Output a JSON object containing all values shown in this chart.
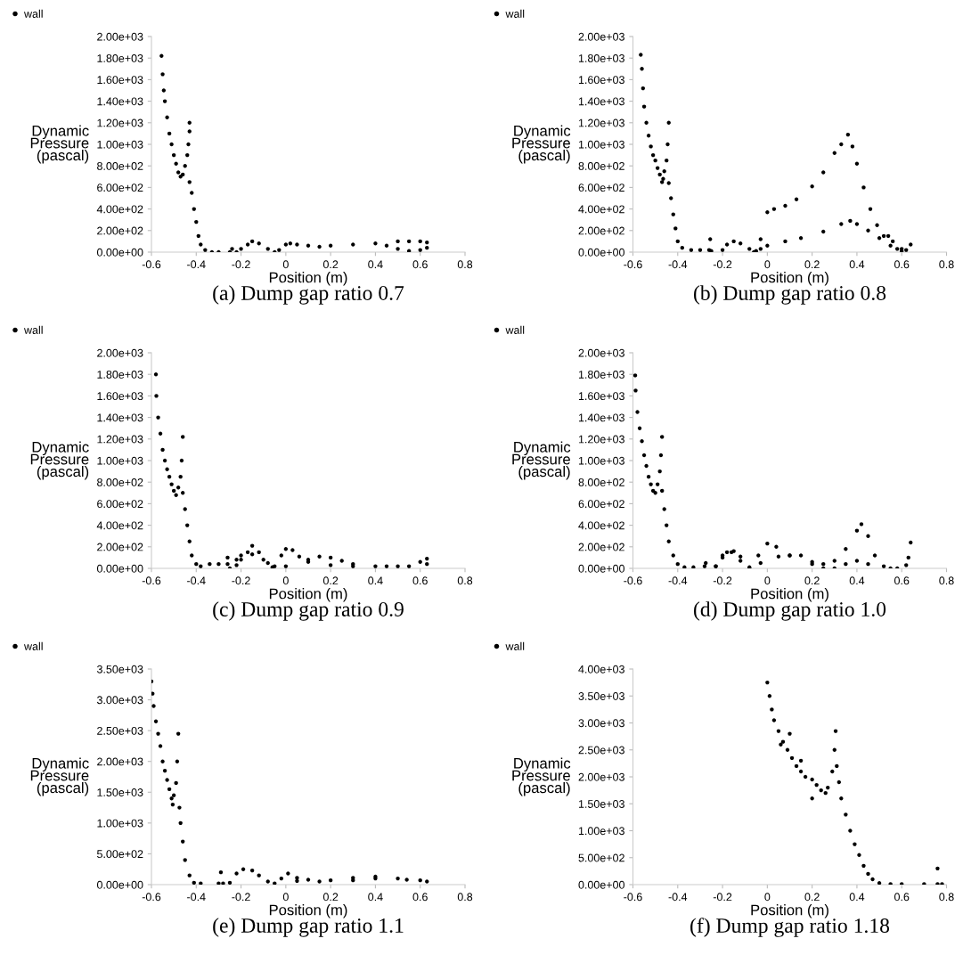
{
  "chart_data": [
    {
      "type": "scatter",
      "title": "(a) Dump gap ratio 0.7",
      "xlabel": "Position (m)",
      "ylabel": "Dynamic\nPressure\n(pascal)",
      "legend": "top left",
      "marker": "circle",
      "grid": false,
      "xlim": [
        -0.6,
        0.8
      ],
      "xticks": [
        -0.6,
        -0.4,
        -0.2,
        0,
        0.2,
        0.4,
        0.6,
        0.8
      ],
      "ylim": [
        0,
        2000
      ],
      "yticks": [
        {
          "value": 0,
          "label": "0.00e+00"
        },
        {
          "value": 200,
          "label": "2.00e+02"
        },
        {
          "value": 400,
          "label": "4.00e+02"
        },
        {
          "value": 600,
          "label": "6.00e+02"
        },
        {
          "value": 800,
          "label": "8.00e+02"
        },
        {
          "value": 1000,
          "label": "1.00e+03"
        },
        {
          "value": 1200,
          "label": "1.20e+03"
        },
        {
          "value": 1400,
          "label": "1.40e+03"
        },
        {
          "value": 1600,
          "label": "1.60e+03"
        },
        {
          "value": 1800,
          "label": "1.80e+03"
        },
        {
          "value": 2000,
          "label": "2.00e+03"
        }
      ],
      "series": [
        {
          "name": "wall",
          "color": "#000000",
          "x": [
            -0.555,
            -0.55,
            -0.545,
            -0.54,
            -0.53,
            -0.52,
            -0.51,
            -0.5,
            -0.49,
            -0.48,
            -0.47,
            -0.46,
            -0.45,
            -0.44,
            -0.435,
            -0.43,
            -0.43,
            -0.43,
            -0.42,
            -0.41,
            -0.4,
            -0.39,
            -0.38,
            -0.36,
            -0.33,
            -0.3,
            -0.25,
            -0.24,
            -0.22,
            -0.2,
            -0.17,
            -0.15,
            -0.12,
            -0.08,
            -0.05,
            -0.03,
            0,
            0.02,
            0.05,
            0.1,
            0.15,
            0.2,
            0.3,
            0.4,
            0.5,
            0.55,
            0.6,
            0.63,
            0.63,
            0.6,
            0.55,
            0.5,
            0.45
          ],
          "values": [
            1820,
            1650,
            1500,
            1400,
            1250,
            1100,
            1000,
            900,
            820,
            740,
            700,
            720,
            800,
            900,
            1000,
            1200,
            1120,
            650,
            550,
            400,
            280,
            150,
            70,
            20,
            0,
            0,
            0,
            30,
            0,
            30,
            70,
            100,
            80,
            30,
            0,
            20,
            70,
            80,
            70,
            60,
            50,
            60,
            70,
            80,
            100,
            100,
            100,
            90,
            40,
            20,
            10,
            30,
            60
          ]
        }
      ]
    },
    {
      "type": "scatter",
      "title": "(b) Dump gap ratio 0.8",
      "xlabel": "Position (m)",
      "ylabel": "Dynamic\nPressure\n(pascal)",
      "legend": "top left",
      "marker": "circle",
      "grid": false,
      "xlim": [
        -0.6,
        0.8
      ],
      "xticks": [
        -0.6,
        -0.4,
        -0.2,
        0,
        0.2,
        0.4,
        0.6,
        0.8
      ],
      "ylim": [
        0,
        2000
      ],
      "yticks": [
        {
          "value": 0,
          "label": "0.00e+00"
        },
        {
          "value": 200,
          "label": "2.00e+02"
        },
        {
          "value": 400,
          "label": "4.00e+02"
        },
        {
          "value": 600,
          "label": "6.00e+02"
        },
        {
          "value": 800,
          "label": "8.00e+02"
        },
        {
          "value": 1000,
          "label": "1.00e+03"
        },
        {
          "value": 1200,
          "label": "1.20e+03"
        },
        {
          "value": 1400,
          "label": "1.40e+03"
        },
        {
          "value": 1600,
          "label": "1.60e+03"
        },
        {
          "value": 1800,
          "label": "1.80e+03"
        },
        {
          "value": 2000,
          "label": "2.00e+03"
        }
      ],
      "series": [
        {
          "name": "wall",
          "color": "#000000",
          "x": [
            -0.565,
            -0.56,
            -0.555,
            -0.55,
            -0.54,
            -0.53,
            -0.52,
            -0.51,
            -0.5,
            -0.49,
            -0.48,
            -0.47,
            -0.465,
            -0.46,
            -0.45,
            -0.445,
            -0.44,
            -0.44,
            -0.43,
            -0.42,
            -0.41,
            -0.4,
            -0.38,
            -0.34,
            -0.3,
            -0.26,
            -0.255,
            -0.25,
            -0.2,
            -0.18,
            -0.15,
            -0.12,
            -0.08,
            -0.06,
            -0.03,
            0,
            0.03,
            0.08,
            0.13,
            0.2,
            0.25,
            0.3,
            0.33,
            0.36,
            0.38,
            0.4,
            0.43,
            0.46,
            0.49,
            0.52,
            0.54,
            0.56,
            0.58,
            0.6,
            0.62,
            0.64,
            0.6,
            0.55,
            0.5,
            0.45,
            0.4,
            0.37,
            0.33,
            0.25,
            0.15,
            0.08,
            0,
            -0.03,
            -0.05
          ],
          "values": [
            1830,
            1700,
            1520,
            1350,
            1200,
            1080,
            980,
            900,
            850,
            780,
            720,
            650,
            680,
            750,
            850,
            1000,
            1200,
            640,
            500,
            350,
            220,
            100,
            40,
            20,
            20,
            20,
            120,
            10,
            20,
            70,
            100,
            80,
            30,
            0,
            120,
            370,
            400,
            430,
            490,
            610,
            740,
            920,
            1000,
            1090,
            980,
            820,
            600,
            400,
            250,
            150,
            150,
            100,
            30,
            10,
            20,
            70,
            30,
            60,
            130,
            200,
            260,
            290,
            260,
            190,
            130,
            100,
            60,
            30,
            10
          ]
        }
      ]
    },
    {
      "type": "scatter",
      "title": "(c) Dump gap ratio 0.9",
      "xlabel": "Position (m)",
      "ylabel": "Dynamic\nPressure\n(pascal)",
      "legend": "top left",
      "marker": "circle",
      "grid": false,
      "xlim": [
        -0.6,
        0.8
      ],
      "xticks": [
        -0.6,
        -0.4,
        -0.2,
        0,
        0.2,
        0.4,
        0.6,
        0.8
      ],
      "ylim": [
        0,
        2000
      ],
      "yticks": [
        {
          "value": 0,
          "label": "0.00e+00"
        },
        {
          "value": 200,
          "label": "2.00e+02"
        },
        {
          "value": 400,
          "label": "4.00e+02"
        },
        {
          "value": 600,
          "label": "6.00e+02"
        },
        {
          "value": 800,
          "label": "8.00e+02"
        },
        {
          "value": 1000,
          "label": "1.00e+03"
        },
        {
          "value": 1200,
          "label": "1.20e+03"
        },
        {
          "value": 1400,
          "label": "1.40e+03"
        },
        {
          "value": 1600,
          "label": "1.60e+03"
        },
        {
          "value": 1800,
          "label": "1.80e+03"
        },
        {
          "value": 2000,
          "label": "2.00e+03"
        }
      ],
      "series": [
        {
          "name": "wall",
          "color": "#000000",
          "x": [
            -0.58,
            -0.578,
            -0.57,
            -0.56,
            -0.55,
            -0.54,
            -0.53,
            -0.52,
            -0.51,
            -0.5,
            -0.49,
            -0.48,
            -0.47,
            -0.465,
            -0.46,
            -0.46,
            -0.45,
            -0.44,
            -0.43,
            -0.42,
            -0.4,
            -0.38,
            -0.34,
            -0.3,
            -0.26,
            -0.26,
            -0.25,
            -0.22,
            -0.2,
            -0.17,
            -0.15,
            -0.12,
            -0.08,
            -0.05,
            -0.02,
            0,
            0.03,
            0.06,
            0.1,
            0.15,
            0.2,
            0.25,
            0.3,
            0.4,
            0.5,
            0.6,
            0.63,
            0.63,
            0.55,
            0.45,
            0.3,
            0.2,
            0.1,
            0,
            -0.06,
            -0.1,
            -0.15,
            -0.2,
            -0.22
          ],
          "values": [
            1800,
            1600,
            1400,
            1250,
            1100,
            1000,
            920,
            850,
            780,
            720,
            680,
            750,
            850,
            1000,
            1220,
            700,
            550,
            400,
            250,
            120,
            40,
            20,
            40,
            40,
            40,
            100,
            0,
            80,
            120,
            150,
            210,
            150,
            50,
            20,
            120,
            180,
            170,
            110,
            80,
            110,
            100,
            70,
            40,
            20,
            20,
            60,
            90,
            40,
            20,
            20,
            20,
            30,
            60,
            20,
            10,
            80,
            130,
            80,
            30
          ]
        }
      ]
    },
    {
      "type": "scatter",
      "title": "(d) Dump gap ratio 1.0",
      "xlabel": "Position (m)",
      "ylabel": "Dynamic\nPressure\n(pascal)",
      "legend": "top left",
      "marker": "circle",
      "grid": false,
      "xlim": [
        -0.6,
        0.8
      ],
      "xticks": [
        -0.6,
        -0.4,
        -0.2,
        0,
        0.2,
        0.4,
        0.6,
        0.8
      ],
      "ylim": [
        0,
        2000
      ],
      "yticks": [
        {
          "value": 0,
          "label": "0.00e+00"
        },
        {
          "value": 200,
          "label": "2.00e+02"
        },
        {
          "value": 400,
          "label": "4.00e+02"
        },
        {
          "value": 600,
          "label": "6.00e+02"
        },
        {
          "value": 800,
          "label": "8.00e+02"
        },
        {
          "value": 1000,
          "label": "1.00e+03"
        },
        {
          "value": 1200,
          "label": "1.20e+03"
        },
        {
          "value": 1400,
          "label": "1.40e+03"
        },
        {
          "value": 1600,
          "label": "1.60e+03"
        },
        {
          "value": 1800,
          "label": "1.80e+03"
        },
        {
          "value": 2000,
          "label": "2.00e+03"
        }
      ],
      "series": [
        {
          "name": "wall",
          "color": "#000000",
          "x": [
            -0.59,
            -0.588,
            -0.58,
            -0.57,
            -0.56,
            -0.55,
            -0.54,
            -0.53,
            -0.52,
            -0.51,
            -0.5,
            -0.49,
            -0.48,
            -0.475,
            -0.47,
            -0.47,
            -0.46,
            -0.45,
            -0.44,
            -0.42,
            -0.4,
            -0.37,
            -0.33,
            -0.28,
            -0.275,
            -0.23,
            -0.2,
            -0.18,
            -0.15,
            -0.12,
            -0.08,
            -0.04,
            0,
            0.04,
            0.1,
            0.15,
            0.2,
            0.25,
            0.3,
            0.35,
            0.4,
            0.42,
            0.45,
            0.48,
            0.52,
            0.58,
            0.62,
            0.64,
            0.63,
            0.55,
            0.45,
            0.4,
            0.35,
            0.3,
            0.25,
            0.2,
            0.1,
            0.05,
            -0.03,
            -0.08,
            -0.12,
            -0.16,
            -0.2,
            -0.23
          ],
          "values": [
            1790,
            1650,
            1450,
            1300,
            1180,
            1050,
            950,
            850,
            780,
            720,
            700,
            780,
            900,
            1050,
            1220,
            720,
            550,
            400,
            250,
            120,
            40,
            10,
            10,
            20,
            50,
            20,
            120,
            150,
            160,
            110,
            10,
            120,
            230,
            200,
            120,
            120,
            60,
            40,
            70,
            180,
            350,
            410,
            300,
            120,
            20,
            0,
            30,
            240,
            100,
            0,
            40,
            70,
            40,
            0,
            0,
            40,
            120,
            110,
            50,
            0,
            70,
            150,
            100,
            20
          ]
        }
      ]
    },
    {
      "type": "scatter",
      "title": "(e) Dump gap ratio 1.1",
      "xlabel": "Position (m)",
      "ylabel": "Dynamic\nPressure\n(pascal)",
      "legend": "top left",
      "marker": "circle",
      "grid": false,
      "xlim": [
        -0.6,
        0.8
      ],
      "xticks": [
        -0.6,
        -0.4,
        -0.2,
        0,
        0.2,
        0.4,
        0.6,
        0.8
      ],
      "ylim": [
        0,
        3500
      ],
      "yticks": [
        {
          "value": 0,
          "label": "0.00e+00"
        },
        {
          "value": 500,
          "label": "5.00e+02"
        },
        {
          "value": 1000,
          "label": "1.00e+03"
        },
        {
          "value": 1500,
          "label": "1.50e+03"
        },
        {
          "value": 2000,
          "label": "2.00e+03"
        },
        {
          "value": 2500,
          "label": "2.50e+03"
        },
        {
          "value": 3000,
          "label": "3.00e+03"
        },
        {
          "value": 3500,
          "label": "3.50e+03"
        }
      ],
      "series": [
        {
          "name": "wall",
          "color": "#000000",
          "x": [
            -0.6,
            -0.595,
            -0.59,
            -0.58,
            -0.57,
            -0.56,
            -0.55,
            -0.54,
            -0.53,
            -0.52,
            -0.51,
            -0.505,
            -0.5,
            -0.49,
            -0.485,
            -0.48,
            -0.475,
            -0.47,
            -0.46,
            -0.45,
            -0.43,
            -0.41,
            -0.38,
            -0.3,
            -0.29,
            -0.28,
            -0.25,
            -0.22,
            -0.19,
            -0.15,
            -0.12,
            -0.08,
            -0.05,
            -0.02,
            0.01,
            0.05,
            0.1,
            0.2,
            0.3,
            0.4,
            0.5,
            0.6,
            0.63,
            0.54,
            0.4,
            0.3,
            0.15,
            0.05
          ],
          "values": [
            3300,
            3100,
            2900,
            2650,
            2450,
            2250,
            2000,
            1850,
            1700,
            1550,
            1400,
            1300,
            1450,
            1650,
            2000,
            2450,
            1250,
            1000,
            700,
            400,
            150,
            30,
            20,
            20,
            200,
            20,
            30,
            180,
            250,
            230,
            150,
            50,
            20,
            100,
            180,
            110,
            80,
            70,
            110,
            130,
            100,
            70,
            50,
            80,
            100,
            70,
            50,
            60
          ]
        }
      ]
    },
    {
      "type": "scatter",
      "title": "(f) Dump gap ratio 1.18",
      "xlabel": "Position (m)",
      "ylabel": "Dynamic\nPressure\n(pascal)",
      "legend": "top left",
      "marker": "circle",
      "grid": false,
      "xlim": [
        -0.6,
        0.8
      ],
      "xticks": [
        -0.6,
        -0.4,
        -0.2,
        0,
        0.2,
        0.4,
        0.6,
        0.8
      ],
      "ylim": [
        0,
        4000
      ],
      "yticks": [
        {
          "value": 0,
          "label": "0.00e+00"
        },
        {
          "value": 500,
          "label": "5.00e+02"
        },
        {
          "value": 1000,
          "label": "1.00e+03"
        },
        {
          "value": 1500,
          "label": "1.50e+03"
        },
        {
          "value": 2000,
          "label": "2.00e+03"
        },
        {
          "value": 2500,
          "label": "2.50e+03"
        },
        {
          "value": 3000,
          "label": "3.00e+03"
        },
        {
          "value": 3500,
          "label": "3.50e+03"
        },
        {
          "value": 4000,
          "label": "4.00e+03"
        }
      ],
      "series": [
        {
          "name": "wall",
          "color": "#000000",
          "x": [
            0,
            0.01,
            0.02,
            0.03,
            0.05,
            0.07,
            0.09,
            0.11,
            0.13,
            0.15,
            0.17,
            0.2,
            0.22,
            0.24,
            0.26,
            0.27,
            0.29,
            0.3,
            0.305,
            0.31,
            0.32,
            0.33,
            0.35,
            0.37,
            0.39,
            0.41,
            0.43,
            0.45,
            0.47,
            0.5,
            0.55,
            0.6,
            0.7,
            0.76,
            0.76,
            0.78,
            0.2,
            0.1,
            0.06,
            0.15
          ],
          "values": [
            3750,
            3500,
            3250,
            3050,
            2850,
            2650,
            2500,
            2350,
            2200,
            2100,
            2000,
            1950,
            1850,
            1750,
            1700,
            1800,
            2100,
            2500,
            2850,
            2200,
            1900,
            1600,
            1300,
            1000,
            750,
            550,
            350,
            200,
            100,
            30,
            10,
            10,
            10,
            10,
            300,
            10,
            1600,
            2800,
            2600,
            2300
          ]
        }
      ]
    }
  ]
}
